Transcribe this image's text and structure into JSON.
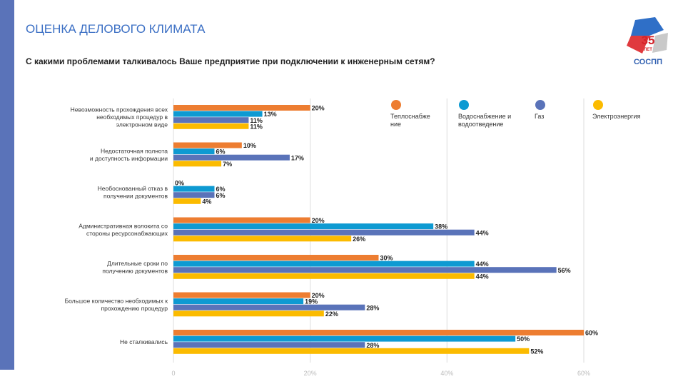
{
  "header": {
    "title": "ОЦЕНКА ДЕЛОВОГО КЛИМАТА",
    "question": "С какими проблемами талкивалось Ваше предприятие при подключении к инженерным сетям?"
  },
  "logo": {
    "number": "35",
    "sub": "ЛЕТ",
    "name": "СОСПП"
  },
  "chart_data": {
    "type": "bar",
    "orientation": "horizontal",
    "categories": [
      [
        "Невозможность прохождения всех",
        "необходимых процедур в",
        "электронном виде"
      ],
      [
        "Недостаточная полнота",
        "и доступность информации"
      ],
      [
        "Необоснованный отказ в",
        "получении документов"
      ],
      [
        "Административная волокита со",
        "стороны ресурсонабжающих"
      ],
      [
        "Длительные сроки по",
        "получению документов"
      ],
      [
        "Большое количество необходимых к",
        "прохождению процедур"
      ],
      [
        "Не сталкивались"
      ]
    ],
    "series": [
      {
        "name": [
          "Теплоснабже",
          "ние"
        ],
        "color": "#ed7d31",
        "values": [
          20,
          10,
          0,
          20,
          30,
          20,
          60
        ]
      },
      {
        "name": [
          "Водоснабжение и",
          "водоотведение"
        ],
        "color": "#0e9ad2",
        "values": [
          13,
          6,
          6,
          38,
          44,
          19,
          50
        ]
      },
      {
        "name": [
          "Газ"
        ],
        "color": "#5a73b9",
        "values": [
          11,
          17,
          6,
          44,
          56,
          28,
          28
        ]
      },
      {
        "name": [
          "Электроэнергия"
        ],
        "color": "#fbbb00",
        "values": [
          11,
          7,
          4,
          26,
          44,
          22,
          52
        ]
      }
    ],
    "xticks": [
      "0",
      "20%",
      "40%",
      "60%"
    ],
    "xlim": [
      0,
      60
    ],
    "grid": true,
    "legend": "top-right"
  }
}
